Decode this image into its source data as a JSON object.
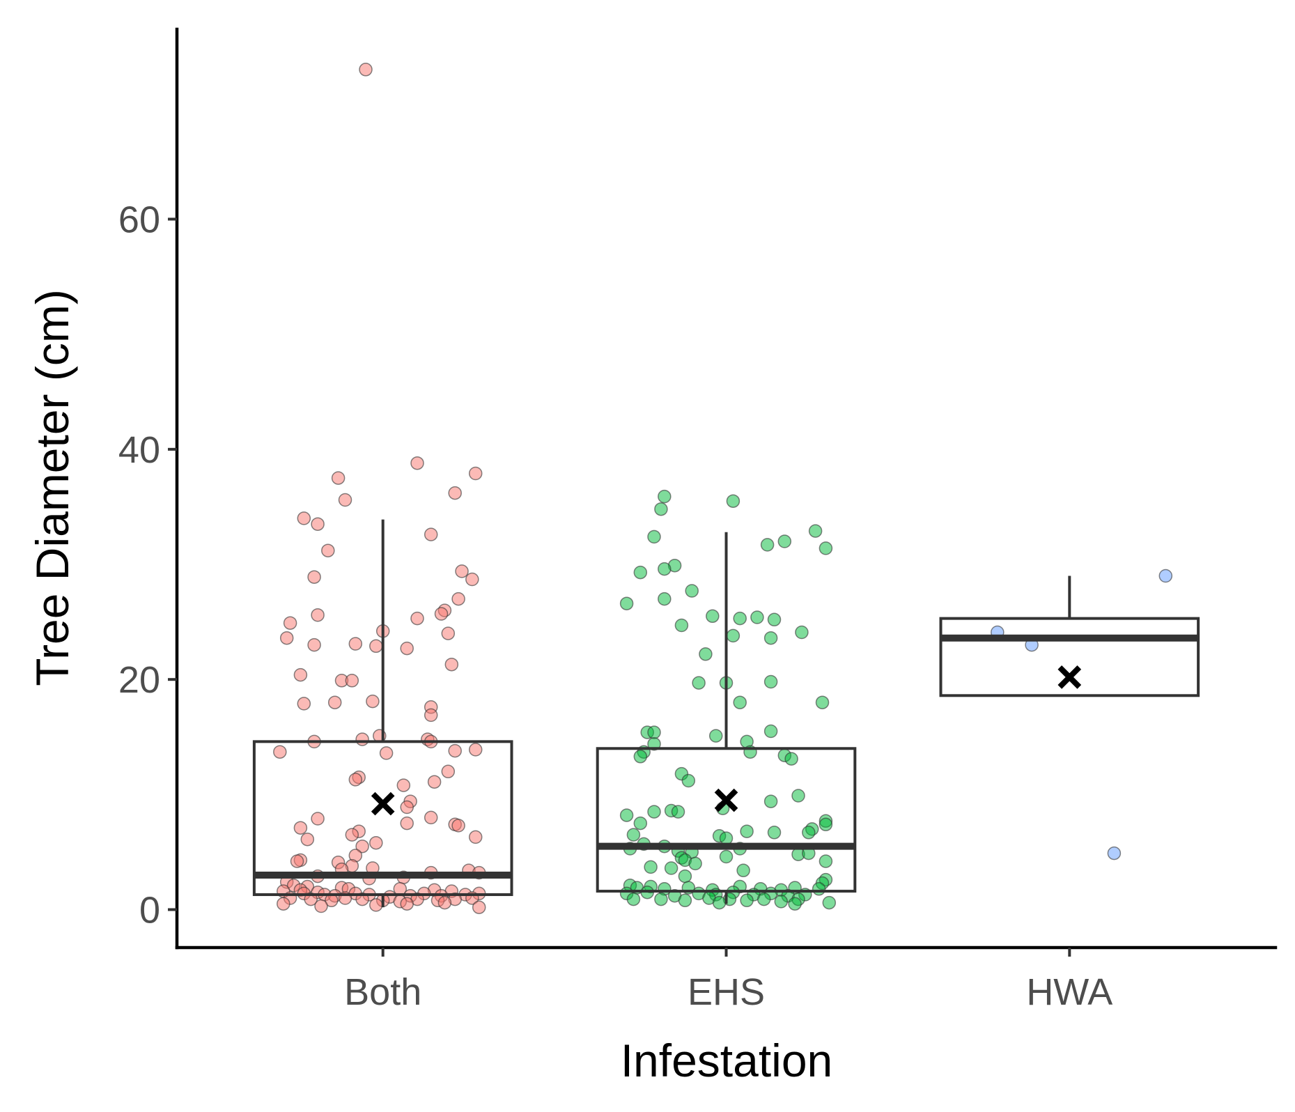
{
  "chart_data": {
    "type": "boxplot",
    "xlabel": "Infestation",
    "ylabel": "Tree Diameter (cm)",
    "ylim": [
      -3.3,
      76.5
    ],
    "y_ticks": [
      0,
      20,
      40,
      60
    ],
    "categories": [
      "Both",
      "EHS",
      "HWA"
    ],
    "colors": {
      "Both": "#F8766D",
      "EHS": "#00BA38",
      "HWA": "#619CFF"
    },
    "grid": false,
    "legend": "none",
    "boxes": [
      {
        "category": "Both",
        "q1": 1.3,
        "median": 3.0,
        "q3": 14.6,
        "whisker_low": 0.2,
        "whisker_high": 33.9,
        "mean": 9.2
      },
      {
        "category": "EHS",
        "q1": 1.6,
        "median": 5.5,
        "q3": 14.0,
        "whisker_low": 0.5,
        "whisker_high": 32.8,
        "mean": 9.5
      },
      {
        "category": "HWA",
        "q1": 18.6,
        "median": 23.6,
        "q3": 25.3,
        "whisker_low": 18.6,
        "whisker_high": 29.0,
        "mean": 20.2
      }
    ],
    "points": {
      "Both": [
        {
          "x": -0.05,
          "y": 73.0
        },
        {
          "x": 0.1,
          "y": 38.8
        },
        {
          "x": 0.27,
          "y": 37.9
        },
        {
          "x": -0.13,
          "y": 37.5
        },
        {
          "x": 0.21,
          "y": 36.2
        },
        {
          "x": -0.11,
          "y": 35.6
        },
        {
          "x": -0.23,
          "y": 34.0
        },
        {
          "x": -0.19,
          "y": 33.5
        },
        {
          "x": 0.14,
          "y": 32.6
        },
        {
          "x": -0.16,
          "y": 31.2
        },
        {
          "x": 0.23,
          "y": 29.4
        },
        {
          "x": 0.26,
          "y": 28.7
        },
        {
          "x": -0.2,
          "y": 28.9
        },
        {
          "x": 0.22,
          "y": 27.0
        },
        {
          "x": 0.18,
          "y": 26.0
        },
        {
          "x": 0.17,
          "y": 25.7
        },
        {
          "x": -0.19,
          "y": 25.6
        },
        {
          "x": 0.1,
          "y": 25.3
        },
        {
          "x": -0.27,
          "y": 24.9
        },
        {
          "x": 0.0,
          "y": 24.2
        },
        {
          "x": 0.19,
          "y": 24.0
        },
        {
          "x": -0.28,
          "y": 23.6
        },
        {
          "x": -0.08,
          "y": 23.1
        },
        {
          "x": -0.02,
          "y": 22.9
        },
        {
          "x": -0.2,
          "y": 23.0
        },
        {
          "x": 0.07,
          "y": 22.7
        },
        {
          "x": 0.2,
          "y": 21.3
        },
        {
          "x": -0.24,
          "y": 20.4
        },
        {
          "x": -0.12,
          "y": 19.9
        },
        {
          "x": -0.09,
          "y": 19.9
        },
        {
          "x": -0.23,
          "y": 17.9
        },
        {
          "x": -0.14,
          "y": 18.0
        },
        {
          "x": -0.03,
          "y": 18.1
        },
        {
          "x": 0.14,
          "y": 17.6
        },
        {
          "x": 0.14,
          "y": 16.9
        },
        {
          "x": -0.01,
          "y": 15.1
        },
        {
          "x": -0.06,
          "y": 14.8
        },
        {
          "x": 0.13,
          "y": 14.8
        },
        {
          "x": 0.14,
          "y": 14.6
        },
        {
          "x": -0.2,
          "y": 14.6
        },
        {
          "x": -0.3,
          "y": 13.7
        },
        {
          "x": 0.21,
          "y": 13.8
        },
        {
          "x": 0.27,
          "y": 13.9
        },
        {
          "x": 0.01,
          "y": 13.6
        },
        {
          "x": 0.19,
          "y": 12.0
        },
        {
          "x": -0.07,
          "y": 11.5
        },
        {
          "x": -0.08,
          "y": 11.3
        },
        {
          "x": 0.15,
          "y": 11.1
        },
        {
          "x": 0.06,
          "y": 10.8
        },
        {
          "x": 0.08,
          "y": 9.4
        },
        {
          "x": 0.07,
          "y": 8.9
        },
        {
          "x": 0.14,
          "y": 8.0
        },
        {
          "x": -0.19,
          "y": 7.9
        },
        {
          "x": 0.07,
          "y": 7.5
        },
        {
          "x": 0.21,
          "y": 7.4
        },
        {
          "x": 0.22,
          "y": 7.3
        },
        {
          "x": -0.24,
          "y": 7.1
        },
        {
          "x": -0.07,
          "y": 6.8
        },
        {
          "x": -0.09,
          "y": 6.5
        },
        {
          "x": -0.22,
          "y": 6.1
        },
        {
          "x": 0.27,
          "y": 6.3
        },
        {
          "x": -0.02,
          "y": 5.8
        },
        {
          "x": -0.06,
          "y": 5.5
        },
        {
          "x": -0.08,
          "y": 4.7
        },
        {
          "x": -0.24,
          "y": 4.3
        },
        {
          "x": -0.25,
          "y": 4.2
        },
        {
          "x": -0.13,
          "y": 4.1
        },
        {
          "x": -0.09,
          "y": 3.8
        },
        {
          "x": -0.12,
          "y": 3.5
        },
        {
          "x": -0.03,
          "y": 3.6
        },
        {
          "x": 0.14,
          "y": 3.2
        },
        {
          "x": 0.25,
          "y": 3.4
        },
        {
          "x": 0.28,
          "y": 3.2
        },
        {
          "x": -0.19,
          "y": 2.9
        },
        {
          "x": -0.04,
          "y": 2.7
        },
        {
          "x": 0.06,
          "y": 2.8
        },
        {
          "x": -0.28,
          "y": 2.4
        },
        {
          "x": -0.26,
          "y": 2.1
        },
        {
          "x": -0.22,
          "y": 2.0
        },
        {
          "x": -0.12,
          "y": 1.9
        },
        {
          "x": -0.1,
          "y": 1.8
        },
        {
          "x": 0.05,
          "y": 1.8
        },
        {
          "x": 0.15,
          "y": 1.7
        },
        {
          "x": 0.2,
          "y": 1.6
        },
        {
          "x": -0.29,
          "y": 1.6
        },
        {
          "x": -0.24,
          "y": 1.7
        },
        {
          "x": -0.23,
          "y": 1.4
        },
        {
          "x": -0.19,
          "y": 1.5
        },
        {
          "x": -0.17,
          "y": 1.3
        },
        {
          "x": -0.14,
          "y": 1.2
        },
        {
          "x": -0.08,
          "y": 1.4
        },
        {
          "x": -0.04,
          "y": 1.3
        },
        {
          "x": 0.02,
          "y": 1.1
        },
        {
          "x": 0.08,
          "y": 1.2
        },
        {
          "x": 0.12,
          "y": 1.4
        },
        {
          "x": 0.17,
          "y": 1.2
        },
        {
          "x": 0.24,
          "y": 1.3
        },
        {
          "x": 0.28,
          "y": 1.4
        },
        {
          "x": -0.27,
          "y": 1.0
        },
        {
          "x": -0.21,
          "y": 0.9
        },
        {
          "x": -0.15,
          "y": 0.8
        },
        {
          "x": -0.11,
          "y": 1.0
        },
        {
          "x": -0.06,
          "y": 0.9
        },
        {
          "x": 0.0,
          "y": 0.8
        },
        {
          "x": 0.05,
          "y": 0.7
        },
        {
          "x": 0.1,
          "y": 0.9
        },
        {
          "x": 0.16,
          "y": 0.8
        },
        {
          "x": 0.21,
          "y": 0.9
        },
        {
          "x": 0.26,
          "y": 1.0
        },
        {
          "x": -0.29,
          "y": 0.5
        },
        {
          "x": -0.18,
          "y": 0.3
        },
        {
          "x": -0.02,
          "y": 0.4
        },
        {
          "x": 0.07,
          "y": 0.5
        },
        {
          "x": 0.18,
          "y": 0.6
        },
        {
          "x": 0.28,
          "y": 0.2
        }
      ],
      "EHS": [
        {
          "x": 0.02,
          "y": 35.5
        },
        {
          "x": -0.18,
          "y": 35.9
        },
        {
          "x": -0.19,
          "y": 34.8
        },
        {
          "x": 0.26,
          "y": 32.9
        },
        {
          "x": -0.21,
          "y": 32.4
        },
        {
          "x": 0.17,
          "y": 32.0
        },
        {
          "x": 0.12,
          "y": 31.7
        },
        {
          "x": 0.29,
          "y": 31.4
        },
        {
          "x": -0.15,
          "y": 29.9
        },
        {
          "x": -0.18,
          "y": 29.6
        },
        {
          "x": -0.25,
          "y": 29.3
        },
        {
          "x": -0.1,
          "y": 27.7
        },
        {
          "x": -0.18,
          "y": 27.0
        },
        {
          "x": -0.29,
          "y": 26.6
        },
        {
          "x": -0.04,
          "y": 25.5
        },
        {
          "x": 0.04,
          "y": 25.3
        },
        {
          "x": 0.09,
          "y": 25.4
        },
        {
          "x": 0.14,
          "y": 25.2
        },
        {
          "x": -0.13,
          "y": 24.7
        },
        {
          "x": 0.22,
          "y": 24.1
        },
        {
          "x": 0.02,
          "y": 23.8
        },
        {
          "x": 0.13,
          "y": 23.6
        },
        {
          "x": -0.06,
          "y": 22.2
        },
        {
          "x": -0.08,
          "y": 19.7
        },
        {
          "x": 0.0,
          "y": 19.7
        },
        {
          "x": 0.13,
          "y": 19.8
        },
        {
          "x": 0.28,
          "y": 18.0
        },
        {
          "x": 0.04,
          "y": 18.0
        },
        {
          "x": -0.23,
          "y": 15.4
        },
        {
          "x": -0.21,
          "y": 15.4
        },
        {
          "x": -0.03,
          "y": 15.1
        },
        {
          "x": 0.13,
          "y": 15.5
        },
        {
          "x": 0.06,
          "y": 14.6
        },
        {
          "x": -0.21,
          "y": 14.4
        },
        {
          "x": -0.24,
          "y": 13.7
        },
        {
          "x": 0.07,
          "y": 13.7
        },
        {
          "x": -0.25,
          "y": 13.3
        },
        {
          "x": 0.17,
          "y": 13.4
        },
        {
          "x": 0.19,
          "y": 13.1
        },
        {
          "x": -0.13,
          "y": 11.8
        },
        {
          "x": -0.11,
          "y": 11.2
        },
        {
          "x": 0.21,
          "y": 9.9
        },
        {
          "x": 0.13,
          "y": 9.4
        },
        {
          "x": -0.01,
          "y": 8.8
        },
        {
          "x": -0.21,
          "y": 8.5
        },
        {
          "x": -0.16,
          "y": 8.6
        },
        {
          "x": -0.14,
          "y": 8.5
        },
        {
          "x": -0.29,
          "y": 8.2
        },
        {
          "x": 0.29,
          "y": 7.7
        },
        {
          "x": -0.25,
          "y": 7.5
        },
        {
          "x": 0.29,
          "y": 7.4
        },
        {
          "x": 0.25,
          "y": 7.0
        },
        {
          "x": 0.06,
          "y": 6.8
        },
        {
          "x": 0.14,
          "y": 6.7
        },
        {
          "x": 0.24,
          "y": 6.7
        },
        {
          "x": -0.27,
          "y": 6.5
        },
        {
          "x": -0.02,
          "y": 6.4
        },
        {
          "x": 0.0,
          "y": 6.2
        },
        {
          "x": -0.24,
          "y": 5.7
        },
        {
          "x": -0.18,
          "y": 5.5
        },
        {
          "x": -0.28,
          "y": 5.3
        },
        {
          "x": 0.04,
          "y": 5.3
        },
        {
          "x": -0.14,
          "y": 5.1
        },
        {
          "x": -0.1,
          "y": 5.0
        },
        {
          "x": 0.21,
          "y": 4.8
        },
        {
          "x": 0.24,
          "y": 4.9
        },
        {
          "x": -0.13,
          "y": 4.5
        },
        {
          "x": -0.12,
          "y": 4.3
        },
        {
          "x": 0.0,
          "y": 4.6
        },
        {
          "x": 0.29,
          "y": 4.2
        },
        {
          "x": -0.09,
          "y": 4.0
        },
        {
          "x": -0.16,
          "y": 3.6
        },
        {
          "x": -0.22,
          "y": 3.7
        },
        {
          "x": 0.05,
          "y": 3.4
        },
        {
          "x": -0.12,
          "y": 2.9
        },
        {
          "x": 0.29,
          "y": 2.6
        },
        {
          "x": 0.28,
          "y": 2.3
        },
        {
          "x": -0.28,
          "y": 2.1
        },
        {
          "x": -0.26,
          "y": 1.9
        },
        {
          "x": -0.22,
          "y": 2.0
        },
        {
          "x": -0.18,
          "y": 1.8
        },
        {
          "x": -0.11,
          "y": 1.9
        },
        {
          "x": -0.04,
          "y": 1.7
        },
        {
          "x": 0.04,
          "y": 2.0
        },
        {
          "x": 0.1,
          "y": 1.8
        },
        {
          "x": 0.16,
          "y": 1.7
        },
        {
          "x": 0.2,
          "y": 1.9
        },
        {
          "x": 0.27,
          "y": 1.8
        },
        {
          "x": -0.29,
          "y": 1.4
        },
        {
          "x": -0.23,
          "y": 1.5
        },
        {
          "x": -0.15,
          "y": 1.2
        },
        {
          "x": -0.08,
          "y": 1.4
        },
        {
          "x": -0.03,
          "y": 1.3
        },
        {
          "x": 0.02,
          "y": 1.5
        },
        {
          "x": 0.08,
          "y": 1.3
        },
        {
          "x": 0.13,
          "y": 1.4
        },
        {
          "x": 0.18,
          "y": 1.2
        },
        {
          "x": 0.23,
          "y": 1.3
        },
        {
          "x": -0.27,
          "y": 0.9
        },
        {
          "x": -0.19,
          "y": 0.9
        },
        {
          "x": -0.12,
          "y": 0.8
        },
        {
          "x": -0.05,
          "y": 1.0
        },
        {
          "x": 0.01,
          "y": 0.9
        },
        {
          "x": 0.06,
          "y": 0.8
        },
        {
          "x": 0.11,
          "y": 0.9
        },
        {
          "x": 0.16,
          "y": 0.7
        },
        {
          "x": 0.21,
          "y": 0.9
        },
        {
          "x": 0.3,
          "y": 0.6
        },
        {
          "x": -0.02,
          "y": 0.6
        },
        {
          "x": 0.2,
          "y": 0.5
        }
      ],
      "HWA": [
        {
          "x": 0.28,
          "y": 29.0
        },
        {
          "x": -0.21,
          "y": 24.1
        },
        {
          "x": -0.11,
          "y": 23.0
        },
        {
          "x": 0.13,
          "y": 4.9
        }
      ]
    }
  }
}
